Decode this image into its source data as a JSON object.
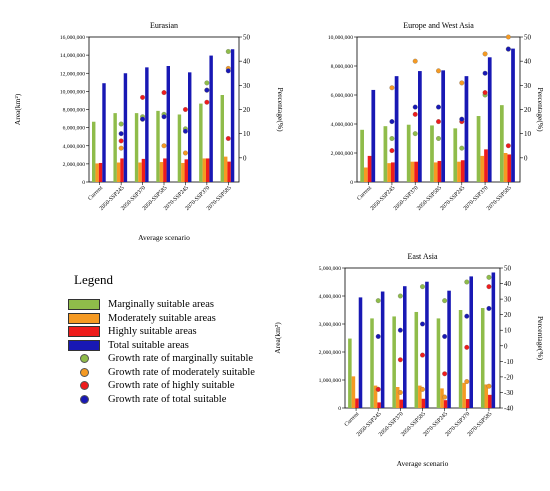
{
  "figure": {
    "categories": [
      "Current",
      "2050-SSP245",
      "2050-SSP370",
      "2050-SSP585",
      "2070-SSP245",
      "2070-SSP370",
      "2070-SSP585"
    ],
    "series_colors": {
      "Marginally suitable areas": "#8fbc4a",
      "Moderately suitable areas": "#f59a23",
      "Highly suitable areas": "#ee1c1c",
      "Total suitable areas": "#1818b4"
    },
    "rate_colors": {
      "Growth rate of marginally suitable": "#8fbc4a",
      "Growth rate of moderately suitable": "#f59a23",
      "Growth rate of highly suitable": "#ee1c1c",
      "Growth rate of total suitable": "#1818b4"
    },
    "xlabel": "Average scenario",
    "ylabel_left": "Area(km²)",
    "ylabel_right": "Percentage(%)"
  },
  "legend": {
    "title": "Legend",
    "items": [
      {
        "label": "Marginally suitable areas",
        "color": "#8fbc4a",
        "kind": "box"
      },
      {
        "label": "Moderately suitable areas",
        "color": "#f59a23",
        "kind": "box"
      },
      {
        "label": "Highly suitable areas",
        "color": "#ee1c1c",
        "kind": "box"
      },
      {
        "label": "Total suitable areas",
        "color": "#1818b4",
        "kind": "box"
      },
      {
        "label": "Growth rate of marginally suitable",
        "color": "#8fbc4a",
        "kind": "dot"
      },
      {
        "label": "Growth rate of moderately suitable",
        "color": "#f59a23",
        "kind": "dot"
      },
      {
        "label": "Growth rate of highly suitable",
        "color": "#ee1c1c",
        "kind": "dot"
      },
      {
        "label": "Growth rate of total suitable",
        "color": "#1818b4",
        "kind": "dot"
      }
    ]
  },
  "chart_data": [
    {
      "type": "bar",
      "title": "Eurasian",
      "xlabel": "Average scenario",
      "ylabel": "Area(km²)",
      "y2label": "Percentage(%)",
      "ylim": [
        0,
        16000000
      ],
      "yticks": [
        0,
        2000000,
        4000000,
        6000000,
        8000000,
        10000000,
        12000000,
        14000000,
        16000000
      ],
      "ytick_labels": [
        "0",
        "2,000,000",
        "4,000,000",
        "6,000,000",
        "8,000,000",
        "10,000,000",
        "12,000,000",
        "14,000,000",
        "16,000,000"
      ],
      "y2lim": [
        -10,
        50
      ],
      "y2ticks": [
        0,
        10,
        20,
        30,
        40,
        50
      ],
      "categories": [
        "Current",
        "2050-SSP245",
        "2050-SSP370",
        "2050-SSP585",
        "2070-SSP245",
        "2070-SSP370",
        "2070-SSP585"
      ],
      "series": [
        {
          "name": "Marginally suitable areas",
          "values": [
            6650000,
            7600000,
            7600000,
            7850000,
            7450000,
            8650000,
            9600000
          ]
        },
        {
          "name": "Moderately suitable areas",
          "values": [
            2050000,
            2150000,
            2150000,
            2200000,
            2100000,
            2600000,
            2800000
          ]
        },
        {
          "name": "Highly suitable areas",
          "values": [
            2100000,
            2600000,
            2550000,
            2600000,
            2500000,
            2600000,
            2250000
          ]
        },
        {
          "name": "Total suitable areas",
          "values": [
            10900000,
            12000000,
            12650000,
            12800000,
            12100000,
            13950000,
            14650000
          ]
        }
      ],
      "rates": [
        {
          "name": "Growth rate of marginally suitable",
          "values": [
            null,
            14,
            17,
            18,
            12,
            31,
            44
          ]
        },
        {
          "name": "Growth rate of moderately suitable",
          "values": [
            null,
            4,
            16,
            5,
            2,
            28,
            37
          ]
        },
        {
          "name": "Growth rate of highly suitable",
          "values": [
            null,
            7,
            25,
            27,
            20,
            23,
            8
          ]
        },
        {
          "name": "Growth rate of total suitable",
          "values": [
            null,
            10,
            16,
            17,
            11,
            28,
            36
          ]
        }
      ]
    },
    {
      "type": "bar",
      "title": "Europe and West Asia",
      "xlabel": "",
      "ylabel": "",
      "y2label": "Percentage(%)",
      "ylim": [
        0,
        10000000
      ],
      "yticks": [
        0,
        2000000,
        4000000,
        6000000,
        8000000,
        10000000
      ],
      "ytick_labels": [
        "0",
        "2,000,000",
        "4,000,000",
        "6,000,000",
        "8,000,000",
        "10,000,000"
      ],
      "y2lim": [
        -10,
        50
      ],
      "y2ticks": [
        0,
        10,
        20,
        30,
        40,
        50
      ],
      "categories": [
        "Current",
        "2050-SSP245",
        "2050-SSP370",
        "2050-SSP585",
        "2070-SSP245",
        "2070-SSP370",
        "2070-SSP585"
      ],
      "series": [
        {
          "name": "Marginally suitable areas",
          "values": [
            3600000,
            3850000,
            3950000,
            3900000,
            3700000,
            4550000,
            5300000
          ]
        },
        {
          "name": "Moderately suitable areas",
          "values": [
            1000000,
            1300000,
            1400000,
            1350000,
            1400000,
            1800000,
            2000000
          ]
        },
        {
          "name": "Highly suitable areas",
          "values": [
            1800000,
            1350000,
            1400000,
            1450000,
            1500000,
            2250000,
            1900000
          ]
        },
        {
          "name": "Total suitable areas",
          "values": [
            6350000,
            7300000,
            7650000,
            7700000,
            7300000,
            8600000,
            9200000
          ]
        }
      ],
      "rates": [
        {
          "name": "Growth rate of marginally suitable",
          "values": [
            null,
            8,
            10,
            8,
            4,
            26,
            45
          ]
        },
        {
          "name": "Growth rate of moderately suitable",
          "values": [
            null,
            29,
            40,
            36,
            31,
            43,
            50
          ]
        },
        {
          "name": "Growth rate of highly suitable",
          "values": [
            null,
            3,
            18,
            15,
            15,
            27,
            5
          ]
        },
        {
          "name": "Growth rate of total suitable",
          "values": [
            null,
            15,
            21,
            21,
            16,
            35,
            45
          ]
        }
      ]
    },
    {
      "type": "bar",
      "title": "East Asia",
      "xlabel": "Average scenario",
      "ylabel": "Area(km²)",
      "y2label": "Percentage(%)",
      "ylim": [
        0,
        5000000
      ],
      "yticks": [
        0,
        1000000,
        2000000,
        3000000,
        4000000,
        5000000
      ],
      "ytick_labels": [
        "0",
        "1,000,000",
        "2,000,000",
        "3,000,000",
        "4,000,000",
        "5,000,000"
      ],
      "y2lim": [
        -40,
        50
      ],
      "y2ticks": [
        -40,
        -30,
        -20,
        -10,
        0,
        10,
        20,
        30,
        40,
        50
      ],
      "categories": [
        "Current",
        "2050-SSP245",
        "2050-SSP370",
        "2050-SSP585",
        "2070-SSP245",
        "2070-SSP370",
        "2070-SSP585"
      ],
      "series": [
        {
          "name": "Marginally suitable areas",
          "values": [
            2480000,
            3200000,
            3270000,
            3430000,
            3200000,
            3500000,
            3570000
          ]
        },
        {
          "name": "Moderately suitable areas",
          "values": [
            1130000,
            800000,
            750000,
            800000,
            700000,
            900000,
            840000
          ]
        },
        {
          "name": "Highly suitable areas",
          "values": [
            340000,
            200000,
            300000,
            330000,
            280000,
            320000,
            470000
          ]
        },
        {
          "name": "Total suitable areas",
          "values": [
            3950000,
            4160000,
            4350000,
            4510000,
            4190000,
            4700000,
            4840000
          ]
        }
      ],
      "rates": [
        {
          "name": "Growth rate of marginally suitable",
          "values": [
            null,
            29,
            32,
            38,
            29,
            41,
            44
          ]
        },
        {
          "name": "Growth rate of moderately suitable",
          "values": [
            null,
            -28,
            -30,
            -28,
            -33,
            -23,
            -26
          ]
        },
        {
          "name": "Growth rate of highly suitable",
          "values": [
            null,
            -28,
            -9,
            -6,
            -18,
            -1,
            38
          ]
        },
        {
          "name": "Growth rate of total suitable",
          "values": [
            null,
            6,
            10,
            14,
            6,
            19,
            24
          ]
        }
      ]
    }
  ]
}
